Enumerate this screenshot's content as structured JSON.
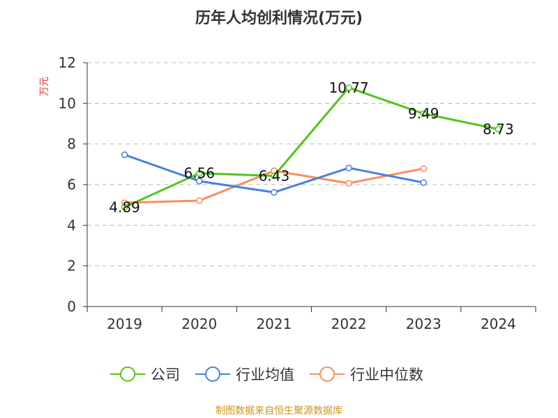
{
  "chart_data": {
    "type": "line",
    "title": "历年人均创利情况(万元)",
    "ylabel": "万元",
    "xlabel": "",
    "categories": [
      "2019",
      "2020",
      "2021",
      "2022",
      "2023",
      "2024"
    ],
    "ylim": [
      0,
      12
    ],
    "yticks": [
      "0",
      "2",
      "4",
      "6",
      "8",
      "10",
      "12"
    ],
    "grid": true,
    "legend_position": "bottom",
    "series": [
      {
        "name": "公司",
        "color": "#52c41a",
        "values": [
          4.89,
          6.56,
          6.43,
          10.77,
          9.49,
          8.73
        ],
        "labels": [
          "4.89",
          "6.56",
          "6.43",
          "10.77",
          "9.49",
          "8.73"
        ]
      },
      {
        "name": "行业均值",
        "color": "#4a7fe0",
        "values": [
          7.47,
          6.17,
          5.62,
          6.82,
          6.1,
          null
        ]
      },
      {
        "name": "行业中位数",
        "color": "#ff8c5a",
        "values": [
          5.11,
          5.21,
          6.68,
          6.07,
          6.79,
          null
        ]
      }
    ]
  },
  "footer": "制图数据来自恒生聚源数据库"
}
